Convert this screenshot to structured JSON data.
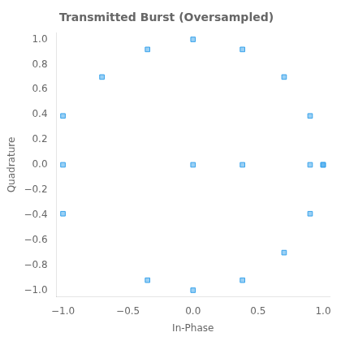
{
  "chart_data": {
    "type": "scatter",
    "title": "Transmitted Burst (Oversampled)",
    "xlabel": "In-Phase",
    "ylabel": "Quadrature",
    "xlim": [
      -1.05,
      1.05
    ],
    "ylim": [
      -1.05,
      1.05
    ],
    "xticks": [
      {
        "value": -1,
        "label": "−1.0"
      },
      {
        "value": -0.5,
        "label": "−0.5"
      },
      {
        "value": 0,
        "label": "0.0"
      },
      {
        "value": 0.5,
        "label": "0.5"
      },
      {
        "value": 1,
        "label": "1.0"
      }
    ],
    "yticks": [
      {
        "value": -1,
        "label": "−1.0"
      },
      {
        "value": -0.8,
        "label": "−0.8"
      },
      {
        "value": -0.6,
        "label": "−0.6"
      },
      {
        "value": -0.4,
        "label": "−0.4"
      },
      {
        "value": -0.2,
        "label": "−0.2"
      },
      {
        "value": 0,
        "label": "0.0"
      },
      {
        "value": 0.2,
        "label": "0.2"
      },
      {
        "value": 0.4,
        "label": "0.4"
      },
      {
        "value": 0.6,
        "label": "0.6"
      },
      {
        "value": 0.8,
        "label": "0.8"
      },
      {
        "value": 1,
        "label": "1.0"
      }
    ],
    "x": [
      -1.0,
      -1.0,
      -1.0,
      -0.7,
      -0.35,
      -0.35,
      0.0,
      0.0,
      0.0,
      0.38,
      0.38,
      0.38,
      0.7,
      0.7,
      0.9,
      0.9,
      0.9,
      1.0,
      1.0
    ],
    "values": [
      0.0,
      0.39,
      -0.39,
      0.7,
      0.92,
      -0.92,
      1.0,
      0.0,
      -1.0,
      0.92,
      0.0,
      -0.92,
      0.7,
      -0.7,
      0.39,
      -0.39,
      0.0,
      0.0,
      0.0
    ],
    "marker": "square",
    "grid": false
  }
}
